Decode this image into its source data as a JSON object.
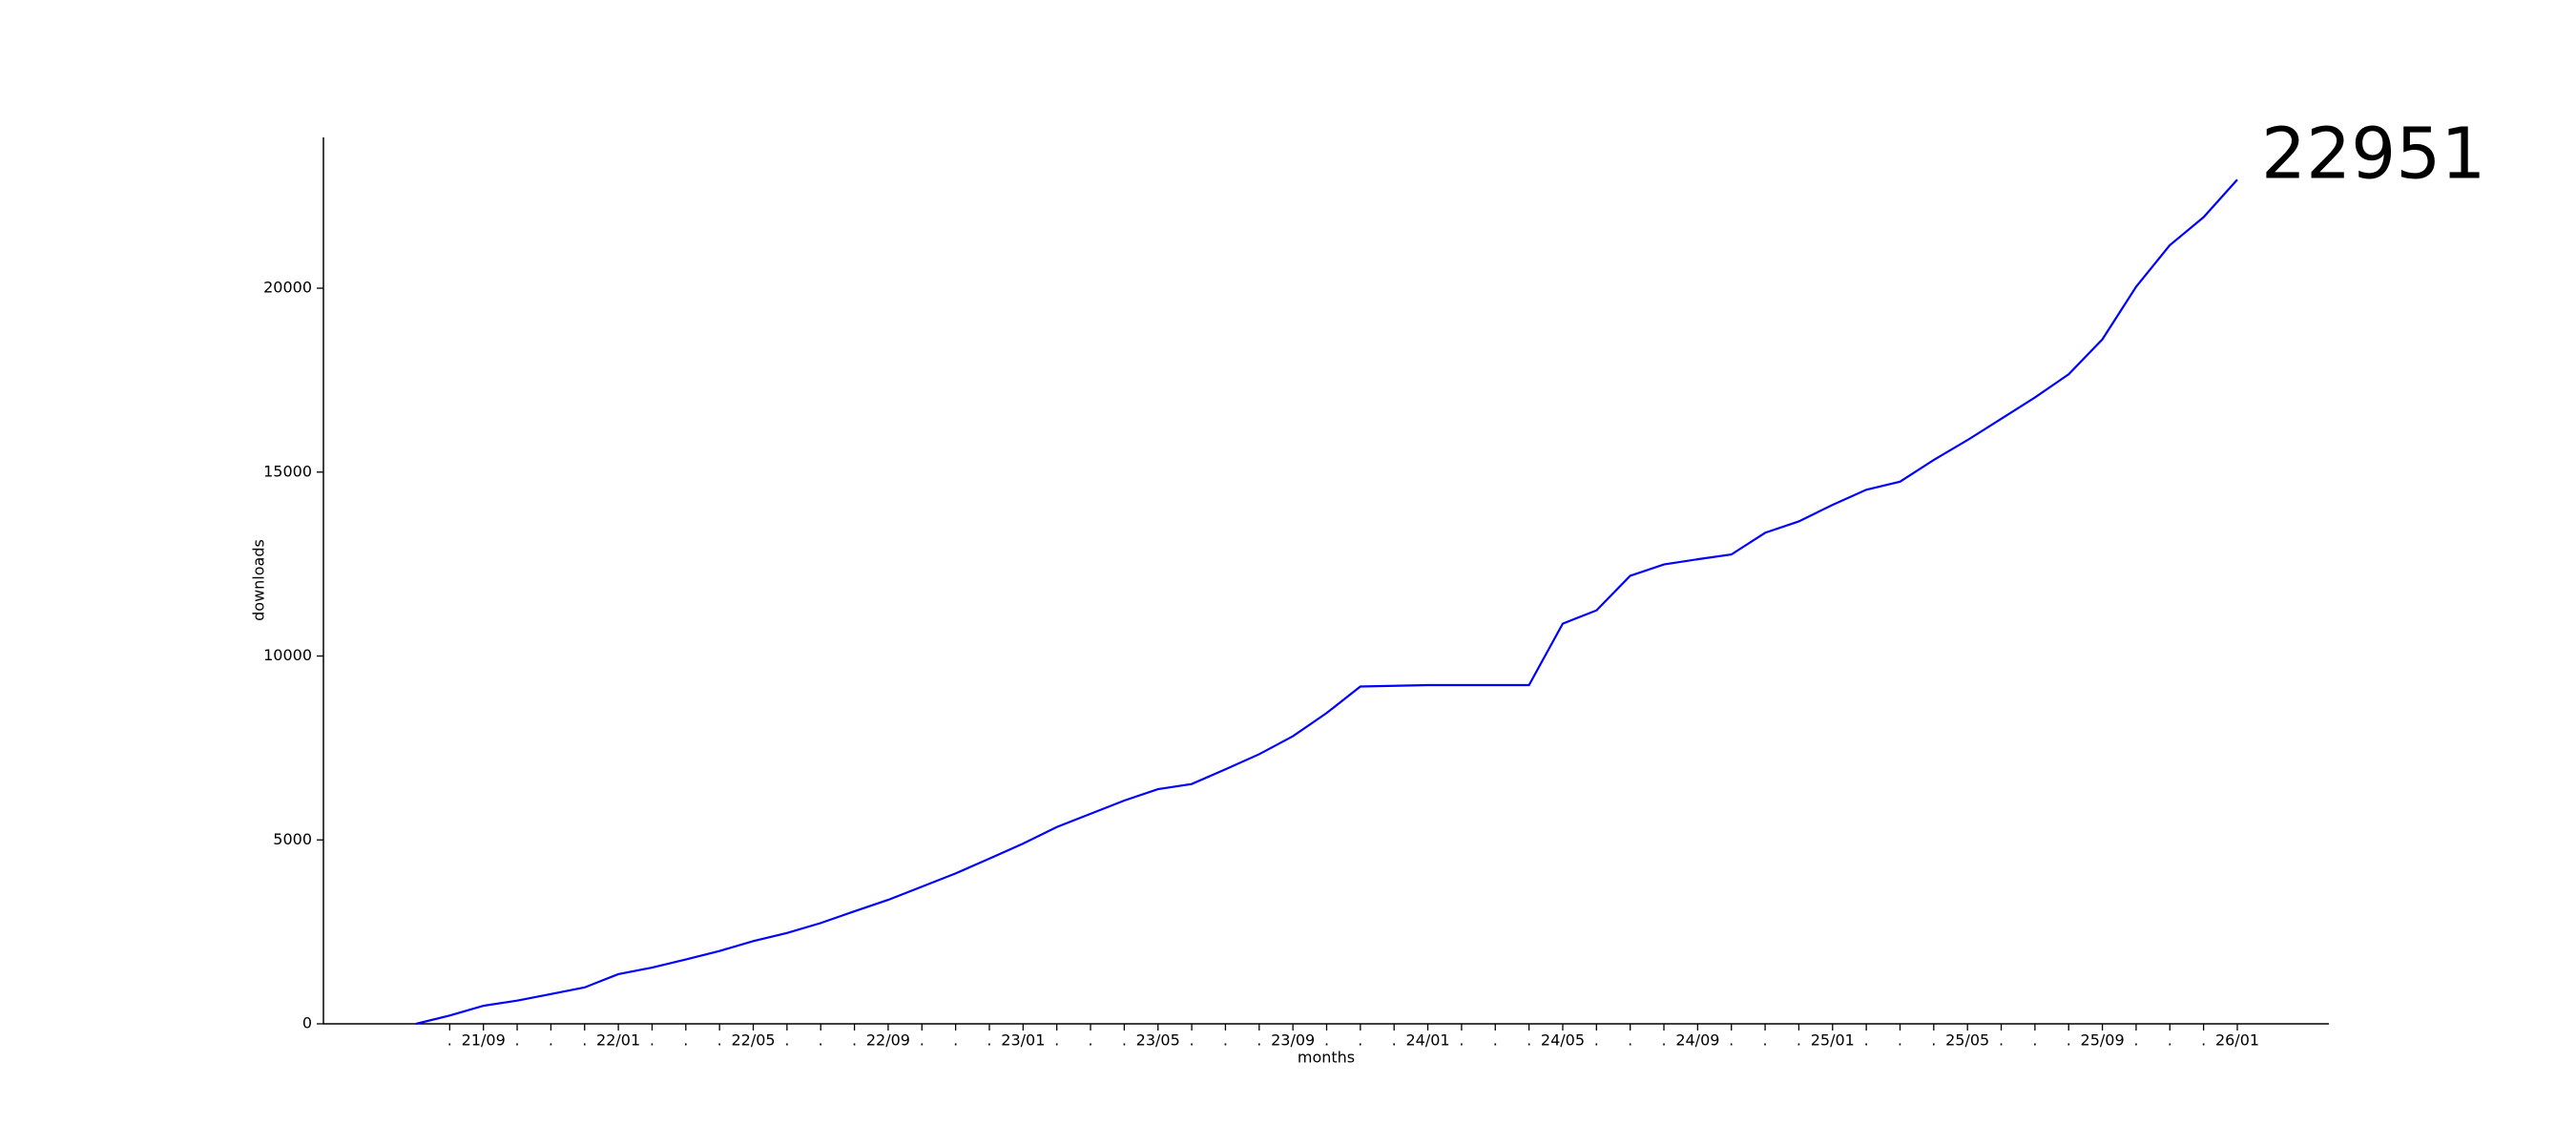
{
  "chart_data": {
    "type": "line",
    "x_label": "months",
    "y_label": "downloads",
    "annotations": [
      "22951"
    ],
    "categories": [
      null,
      ".",
      "21/09",
      ".",
      ".",
      ".",
      "22/01",
      ".",
      ".",
      ".",
      "22/05",
      ".",
      ".",
      ".",
      "22/09",
      ".",
      ".",
      ".",
      "23/01",
      ".",
      ".",
      ".",
      "23/05",
      ".",
      ".",
      ".",
      "23/09",
      ".",
      ".",
      ".",
      "24/01",
      ".",
      ".",
      ".",
      "24/05",
      ".",
      ".",
      ".",
      "24/09",
      ".",
      ".",
      ".",
      "25/01",
      ".",
      ".",
      ".",
      "25/05",
      ".",
      ".",
      ".",
      "25/09",
      ".",
      ".",
      ".",
      "26/01"
    ],
    "series": [
      {
        "name": "downloads",
        "color": "#0000ff",
        "values": [
          0,
          225,
          490,
          630,
          810,
          990,
          1350,
          1530,
          1750,
          1980,
          2250,
          2470,
          2740,
          3060,
          3370,
          3730,
          4090,
          4490,
          4900,
          5350,
          5710,
          6070,
          6380,
          6520,
          6920,
          7330,
          7820,
          8450,
          9170,
          9190,
          9210,
          9210,
          9210,
          9210,
          10880,
          11240,
          12180,
          12490,
          12630,
          12760,
          13350,
          13660,
          14110,
          14520,
          14740,
          15330,
          15870,
          16450,
          17030,
          17660,
          18610,
          20040,
          21170,
          21930,
          22951
        ]
      }
    ],
    "ylim": [
      0,
      24100
    ],
    "yticks": [
      0,
      5000,
      10000,
      15000,
      20000
    ],
    "grid": false
  }
}
